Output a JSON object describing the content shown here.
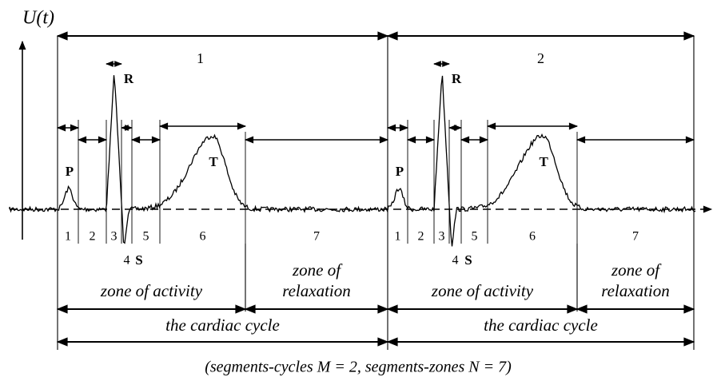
{
  "axis_label": "U(t)",
  "cycles": [
    {
      "number": "1",
      "waves": [
        "P",
        "R",
        "S",
        "T"
      ],
      "segments": [
        "1",
        "2",
        "3",
        "4",
        "5",
        "6",
        "7"
      ],
      "zone_activity": "zone of activity",
      "zone_relaxation": [
        "zone of",
        "relaxation"
      ],
      "cycle_label": "the cardiac cycle"
    },
    {
      "number": "2",
      "waves": [
        "P",
        "R",
        "S",
        "T"
      ],
      "segments": [
        "1",
        "2",
        "3",
        "4",
        "5",
        "6",
        "7"
      ],
      "zone_activity": "zone of activity",
      "zone_relaxation": [
        "zone of",
        "relaxation"
      ],
      "cycle_label": "the cardiac cycle"
    }
  ],
  "caption": "(segments-cycles M = 2, segments-zones N = 7)"
}
